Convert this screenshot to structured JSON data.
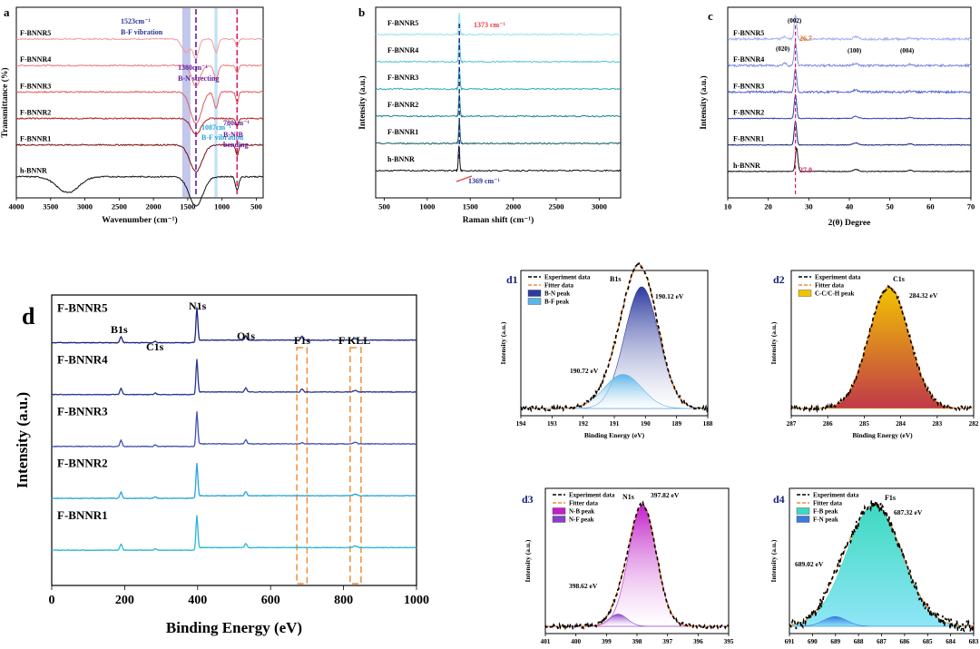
{
  "chart_data": [
    {
      "id": "a",
      "type": "line",
      "panel_label": "a",
      "xlabel": "Wavenumber (cm⁻¹)",
      "ylabel": "Transmittance (%)",
      "xlim": [
        4000,
        400
      ],
      "x_ticks": [
        4000,
        3500,
        3000,
        2500,
        2000,
        1500,
        1000,
        500
      ],
      "series": [
        {
          "name": "F-BNNR5",
          "color": "#f29a9a",
          "baseline": 6.0,
          "dips": [
            [
              1523,
              0.5,
              60
            ],
            [
              1380,
              0.7,
              40
            ],
            [
              1087,
              0.5,
              30
            ],
            [
              780,
              0.3,
              20
            ]
          ]
        },
        {
          "name": "F-BNNR4",
          "color": "#ee7a7a",
          "baseline": 5.0,
          "dips": [
            [
              1380,
              0.8,
              60
            ],
            [
              1087,
              0.5,
              30
            ],
            [
              780,
              0.3,
              20
            ]
          ]
        },
        {
          "name": "F-BNNR3",
          "color": "#e35a5a",
          "baseline": 4.0,
          "dips": [
            [
              1380,
              1.2,
              80
            ],
            [
              1087,
              0.6,
              30
            ],
            [
              780,
              0.4,
              20
            ]
          ]
        },
        {
          "name": "F-BNNR2",
          "color": "#b82020",
          "baseline": 3.0,
          "dips": [
            [
              1380,
              0.6,
              70
            ],
            [
              780,
              0.3,
              20
            ]
          ]
        },
        {
          "name": "F-BNNR1",
          "color": "#7a0e0e",
          "baseline": 2.0,
          "dips": [
            [
              1380,
              1.0,
              90
            ],
            [
              780,
              0.4,
              20
            ]
          ]
        },
        {
          "name": "h-BNNR",
          "color": "#111111",
          "baseline": 0.8,
          "dips": [
            [
              3250,
              0.6,
              160
            ],
            [
              1380,
              1.1,
              100
            ],
            [
              780,
              0.5,
              25
            ]
          ]
        }
      ],
      "bands": [
        {
          "from": 1580,
          "to": 1460,
          "color": "#b3b9e6"
        },
        {
          "from": 1110,
          "to": 1065,
          "color": "#b4dcf2"
        }
      ],
      "marker_lines": [
        {
          "x": 1380,
          "color": "#6a1b9a"
        },
        {
          "x": 780,
          "color": "#d81b60"
        }
      ],
      "annotations": [
        {
          "text": "1523cm⁻¹",
          "color": "#283593"
        },
        {
          "text": "B-F vibration",
          "color": "#283593"
        },
        {
          "text": "1380cm⁻¹",
          "color": "#6a1b9a"
        },
        {
          "text": "B-N strecting",
          "color": "#6a1b9a"
        },
        {
          "text": "1087cm⁻¹",
          "color": "#29a3d9"
        },
        {
          "text": "B-F vibration",
          "color": "#29a3d9"
        },
        {
          "text": "780cm⁻¹",
          "color": "#6a1b9a"
        },
        {
          "text": "B-N-B",
          "color": "#6a1b9a"
        },
        {
          "text": "bending",
          "color": "#6a1b9a"
        }
      ]
    },
    {
      "id": "b",
      "type": "line",
      "panel_label": "b",
      "xlabel": "Raman shift (cm⁻¹)",
      "ylabel": "Intensity (a.u.)",
      "xlim": [
        400,
        3250
      ],
      "x_ticks": [
        500,
        1000,
        1500,
        2000,
        2500,
        3000
      ],
      "series": [
        {
          "name": "F-BNNR5",
          "color": "#8ee3ef",
          "baseline": 6.0,
          "peak": 1373,
          "height": 0.8
        },
        {
          "name": "F-BNNR4",
          "color": "#4fc3d5",
          "baseline": 5.0,
          "peak": 1373,
          "height": 0.8
        },
        {
          "name": "F-BNNR3",
          "color": "#2aa7b8",
          "baseline": 4.0,
          "peak": 1373,
          "height": 0.8
        },
        {
          "name": "F-BNNR2",
          "color": "#177f8c",
          "baseline": 3.0,
          "peak": 1373,
          "height": 0.8
        },
        {
          "name": "F-BNNR1",
          "color": "#0f5b66",
          "baseline": 2.0,
          "peak": 1373,
          "height": 0.8
        },
        {
          "name": "h-BNNR",
          "color": "#111111",
          "baseline": 1.0,
          "peak": 1369,
          "height": 0.9
        }
      ],
      "annotations": [
        {
          "text": "1373 cm⁻¹",
          "color": "#e53935"
        },
        {
          "text": "1369 cm⁻¹",
          "color": "#283593"
        }
      ]
    },
    {
      "id": "c",
      "type": "line",
      "panel_label": "c",
      "xlabel": "2(θ) Degree",
      "ylabel": "Intensity (a.u.)",
      "xlim": [
        10,
        70
      ],
      "x_ticks": [
        10,
        20,
        30,
        40,
        50,
        60,
        70
      ],
      "series": [
        {
          "name": "F-BNNR5",
          "color": "#a4b0f0",
          "baseline": 6.0
        },
        {
          "name": "F-BNNR4",
          "color": "#7f8ce0",
          "baseline": 5.0
        },
        {
          "name": "F-BNNR3",
          "color": "#5a6ad0",
          "baseline": 4.0
        },
        {
          "name": "F-BNNR2",
          "color": "#2f3fb0",
          "baseline": 3.0
        },
        {
          "name": "F-BNNR1",
          "color": "#1a237e",
          "baseline": 2.0
        },
        {
          "name": "h-BNNR",
          "color": "#111111",
          "baseline": 1.0
        }
      ],
      "peaks": [
        {
          "x": 24.0,
          "label": "(020)"
        },
        {
          "x": 26.7,
          "label": "(002)"
        },
        {
          "x": 41.6,
          "label": "(100)"
        },
        {
          "x": 55.0,
          "label": "(004)"
        }
      ],
      "annotations": [
        {
          "text": "26.7",
          "color": "#ef6c00"
        },
        {
          "text": "27.0",
          "color": "#d81b60"
        }
      ]
    },
    {
      "id": "d",
      "type": "line",
      "panel_label": "d",
      "xlabel": "Binding Energy (eV)",
      "ylabel": "Intensity (a.u.)",
      "xlim": [
        0,
        1000
      ],
      "x_ticks": [
        0,
        200,
        400,
        600,
        800,
        1000
      ],
      "series": [
        {
          "name": "F-BNNR5",
          "color": "#1a237e",
          "baseline": 5.0,
          "f1s": 0.3
        },
        {
          "name": "F-BNNR4",
          "color": "#283593",
          "baseline": 4.0,
          "f1s": 0.25
        },
        {
          "name": "F-BNNR3",
          "color": "#3f51b5",
          "baseline": 3.0,
          "f1s": 0.1
        },
        {
          "name": "F-BNNR2",
          "color": "#29a3d9",
          "baseline": 2.0,
          "f1s": 0.0
        },
        {
          "name": "F-BNNR1",
          "color": "#26b6d6",
          "baseline": 1.0,
          "f1s": 0.0
        }
      ],
      "peak_labels": [
        {
          "x": 190,
          "label": "B1s"
        },
        {
          "x": 284,
          "label": "C1s"
        },
        {
          "x": 398,
          "label": "N1s"
        },
        {
          "x": 532,
          "label": "O1s"
        },
        {
          "x": 686,
          "label": "F1s"
        },
        {
          "x": 832,
          "label": "F KLL"
        }
      ],
      "dashed_ranges": [
        [
          672,
          700
        ],
        [
          818,
          848
        ]
      ]
    },
    {
      "id": "d1",
      "type": "line",
      "panel_label": "d1",
      "title": "B1s",
      "xlabel": "Binding Energy (eV)",
      "ylabel": "Intensity (a.u.)",
      "xlim": [
        194,
        188
      ],
      "x_ticks": [
        194,
        193,
        192,
        191,
        190,
        189,
        188
      ],
      "legend": [
        "Experiment data",
        "Fitter data",
        "B-N peak",
        "B-F peak"
      ],
      "peaks": [
        {
          "name": "B-N peak",
          "center": 190.12,
          "height": 1.0,
          "sigma": 0.55,
          "color": "#2d3a9e",
          "label": "190.12 eV"
        },
        {
          "name": "B-F peak",
          "center": 190.72,
          "height": 0.28,
          "sigma": 0.6,
          "color": "#5ab6e8",
          "label": "190.72 eV"
        }
      ]
    },
    {
      "id": "d2",
      "type": "line",
      "panel_label": "d2",
      "title": "C1s",
      "xlabel": "Binding Energy (eV)",
      "ylabel": "Intensity (a.u.)",
      "xlim": [
        287,
        282
      ],
      "x_ticks": [
        287,
        286,
        285,
        284,
        283,
        282
      ],
      "legend": [
        "Experiment data",
        "Fitter data",
        "C-C/C-H peak"
      ],
      "peaks": [
        {
          "name": "C-C/C-H peak",
          "center": 284.32,
          "height": 1.0,
          "sigma": 0.55,
          "color": "#f2c400",
          "label": "284.32 eV"
        }
      ]
    },
    {
      "id": "d3",
      "type": "line",
      "panel_label": "d3",
      "title": "N1s",
      "xlabel": "Binding Energy (eV)",
      "ylabel": "Intensity (a.u.)",
      "xlim": [
        401,
        395
      ],
      "x_ticks": [
        401,
        400,
        399,
        398,
        397,
        396,
        395
      ],
      "legend": [
        "Experiment data",
        "Fitter data",
        "N-B peak",
        "N-F peak"
      ],
      "peaks": [
        {
          "name": "N-B peak",
          "center": 397.82,
          "height": 1.0,
          "sigma": 0.45,
          "color": "#c020c8",
          "label": "397.82 eV"
        },
        {
          "name": "N-F peak",
          "center": 398.62,
          "height": 0.1,
          "sigma": 0.3,
          "color": "#8a3fc7",
          "label": "398.62 eV"
        }
      ]
    },
    {
      "id": "d4",
      "type": "line",
      "panel_label": "d4",
      "title": "F1s",
      "xlabel": "Binding Energy (eV)",
      "ylabel": "Intensity (a.u.)",
      "xlim": [
        691,
        683
      ],
      "x_ticks": [
        691,
        690,
        689,
        688,
        687,
        686,
        685,
        684,
        683
      ],
      "legend": [
        "Experiment data",
        "Fitter data",
        "F-B peak",
        "F-N peak"
      ],
      "peaks": [
        {
          "name": "F-B peak",
          "center": 687.32,
          "height": 1.0,
          "sigma": 1.2,
          "color": "#3ed9c0",
          "label": "687.32 eV"
        },
        {
          "name": "F-N peak",
          "center": 689.02,
          "height": 0.08,
          "sigma": 0.5,
          "color": "#3a7be0",
          "label": "689.02 eV"
        }
      ]
    }
  ]
}
